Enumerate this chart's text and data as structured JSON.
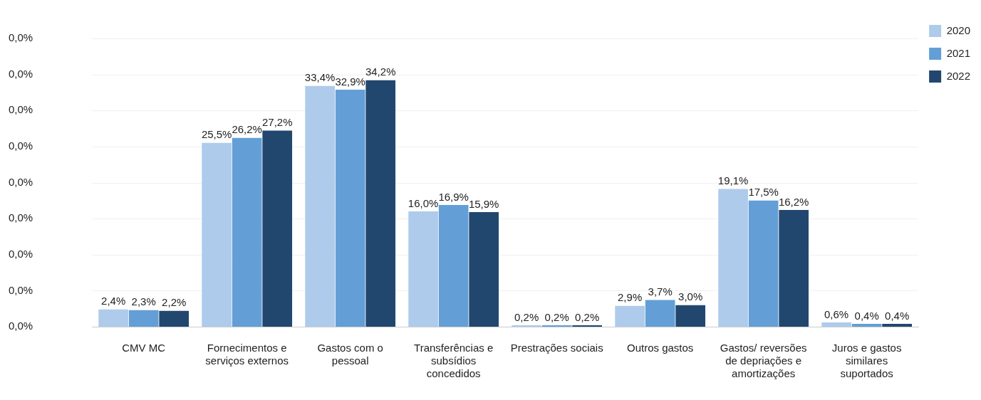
{
  "chart_data": {
    "type": "bar",
    "categories": [
      "CMV MC",
      "Fornecimentos e serviços externos",
      "Gastos com o pessoal",
      "Transferências e subsídios concedidos",
      "Prestrações sociais",
      "Outros gastos",
      "Gastos/ reversões de depriações e amortizações",
      "Juros e gastos similares suportados"
    ],
    "series": [
      {
        "name": "2020",
        "color": "#aecbeb",
        "values": [
          2.4,
          25.5,
          33.4,
          16.0,
          0.2,
          2.9,
          19.1,
          0.6
        ],
        "value_labels": [
          "2,4%",
          "25,5%",
          "33,4%",
          "16,0%",
          "0,2%",
          "2,9%",
          "19,1%",
          "0,6%"
        ]
      },
      {
        "name": "2021",
        "color": "#639fd6",
        "values": [
          2.3,
          26.2,
          32.9,
          16.9,
          0.2,
          3.7,
          17.5,
          0.4
        ],
        "value_labels": [
          "2,3%",
          "26,2%",
          "32,9%",
          "16,9%",
          "0,2%",
          "3,7%",
          "17,5%",
          "0,4%"
        ]
      },
      {
        "name": "2022",
        "color": "#22476f",
        "values": [
          2.2,
          27.2,
          34.2,
          15.9,
          0.2,
          3.0,
          16.2,
          0.4
        ],
        "value_labels": [
          "2,2%",
          "27,2%",
          "34,2%",
          "15,9%",
          "0,2%",
          "3,0%",
          "16,2%",
          "0,4%"
        ]
      }
    ],
    "annotations": [
      "0,0%",
      "0,0%",
      "0,0%",
      "0,0%",
      "0,0%",
      "0,0%",
      "0,0%",
      "0,0%",
      "0,0%"
    ],
    "grid": "y",
    "legend": "top right"
  }
}
